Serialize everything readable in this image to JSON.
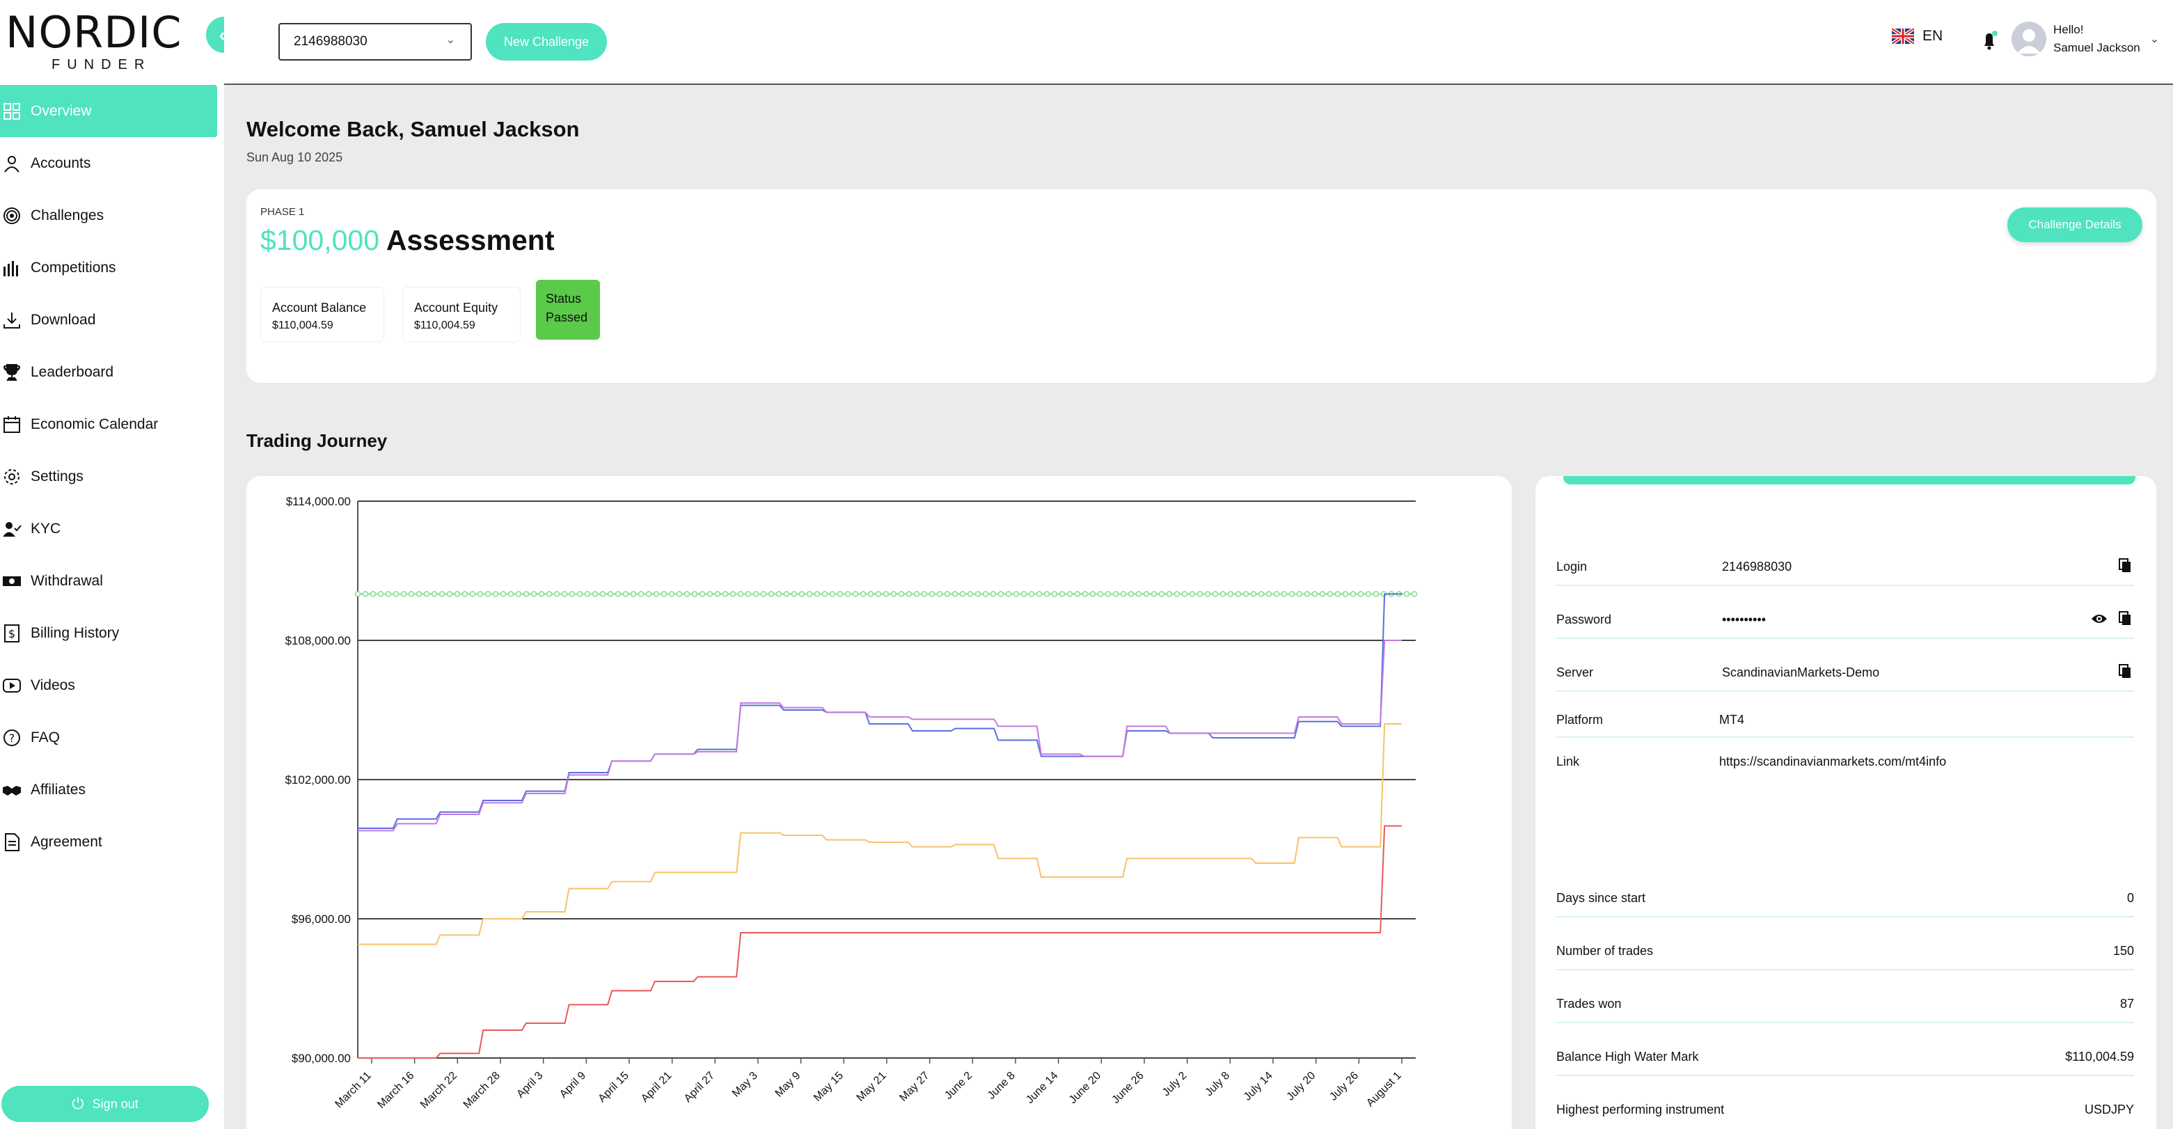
{
  "brand": {
    "name": "NORDIC",
    "sub": "FUNDER"
  },
  "sidebar": {
    "items": [
      {
        "label": "Overview",
        "icon": "grid-icon",
        "active": true
      },
      {
        "label": "Accounts",
        "icon": "user-icon"
      },
      {
        "label": "Challenges",
        "icon": "target-icon"
      },
      {
        "label": "Competitions",
        "icon": "bars-icon"
      },
      {
        "label": "Download",
        "icon": "download-icon"
      },
      {
        "label": "Leaderboard",
        "icon": "trophy-icon"
      },
      {
        "label": "Economic Calendar",
        "icon": "calendar-icon"
      },
      {
        "label": "Settings",
        "icon": "gear-icon"
      },
      {
        "label": "KYC",
        "icon": "user-check-icon"
      },
      {
        "label": "Withdrawal",
        "icon": "cash-icon"
      },
      {
        "label": "Billing History",
        "icon": "dollar-doc-icon"
      },
      {
        "label": "Videos",
        "icon": "play-icon"
      },
      {
        "label": "FAQ",
        "icon": "question-icon"
      },
      {
        "label": "Affiliates",
        "icon": "handshake-icon"
      },
      {
        "label": "Agreement",
        "icon": "document-icon"
      }
    ],
    "signout": "Sign out"
  },
  "topbar": {
    "account": "2146988030",
    "new_challenge": "New Challenge",
    "lang": "EN",
    "greeting": "Hello!",
    "user_name": "Samuel Jackson"
  },
  "welcome": {
    "title": "Welcome Back, Samuel Jackson",
    "date": "Sun Aug 10 2025"
  },
  "assessment": {
    "phase": "PHASE 1",
    "amount": "$100,000",
    "title": "Assessment",
    "balance_label": "Account Balance",
    "balance": "$110,004.59",
    "equity_label": "Account Equity",
    "equity": "$110,004.59",
    "status_label": "Status",
    "status": "Passed",
    "details_button": "Challenge Details"
  },
  "journey_title": "Trading Journey",
  "chart_data": {
    "type": "line",
    "title": "",
    "ylim": [
      90000,
      114000
    ],
    "yticks": [
      "$114,000.00",
      "$108,000.00",
      "$102,000.00",
      "$96,000.00",
      "$90,000.00"
    ],
    "ytick_values": [
      114000,
      108000,
      102000,
      96000,
      90000
    ],
    "categories": [
      "March 11",
      "March 16",
      "March 22",
      "March 28",
      "April 3",
      "April 9",
      "April 15",
      "April 21",
      "April 27",
      "May 3",
      "May 9",
      "May 15",
      "May 21",
      "May 27",
      "June 2",
      "June 8",
      "June 14",
      "June 20",
      "June 26",
      "July 2",
      "July 8",
      "July 14",
      "July 20",
      "July 26",
      "August 1"
    ],
    "target_line": 110000,
    "colors": {
      "balance": "#5a6fe0",
      "equity": "#c47ae0",
      "yellow": "#f5c26b",
      "red": "#e85a5a",
      "target": "#7ee08a"
    },
    "series": [
      {
        "key": "balance",
        "values": [
          99900,
          100300,
          100600,
          101100,
          101500,
          102300,
          102800,
          103100,
          103300,
          105200,
          105000,
          104900,
          104400,
          104100,
          104200,
          103700,
          103000,
          103000,
          104100,
          104000,
          103800,
          103800,
          104500,
          104300,
          110000
        ]
      },
      {
        "key": "equity",
        "values": [
          99800,
          100100,
          100500,
          101000,
          101400,
          102200,
          102800,
          103100,
          103200,
          105300,
          105100,
          104900,
          104700,
          104600,
          104600,
          104300,
          103100,
          103000,
          104300,
          104000,
          104000,
          104000,
          104700,
          104400,
          108000
        ]
      },
      {
        "key": "yellow",
        "values": [
          94900,
          94900,
          95300,
          96000,
          96300,
          97300,
          97600,
          98000,
          98000,
          99700,
          99600,
          99400,
          99300,
          99100,
          99200,
          98600,
          97800,
          97800,
          98600,
          98600,
          98600,
          98400,
          99500,
          99100,
          104400
        ]
      },
      {
        "key": "red",
        "values": [
          90000,
          90000,
          90200,
          91200,
          91500,
          92300,
          92900,
          93300,
          93500,
          95400,
          95400,
          95400,
          95400,
          95400,
          95400,
          95400,
          95400,
          95400,
          95400,
          95400,
          95400,
          95400,
          95400,
          95400,
          100000
        ]
      }
    ]
  },
  "account_info": {
    "login_label": "Login",
    "login": "2146988030",
    "password_label": "Password",
    "password": "••••••••••",
    "server_label": "Server",
    "server": "ScandinavianMarkets-Demo",
    "platform_label": "Platform",
    "platform": "MT4",
    "link_label": "Link",
    "link": "https://scandinavianmarkets.com/mt4info"
  },
  "stats": [
    {
      "label": "Days since start",
      "value": "0"
    },
    {
      "label": "Number of trades",
      "value": "150"
    },
    {
      "label": "Trades won",
      "value": "87"
    },
    {
      "label": "Balance High Water Mark",
      "value": "$110,004.59"
    },
    {
      "label": "Highest performing instrument",
      "value": "USDJPY"
    }
  ]
}
